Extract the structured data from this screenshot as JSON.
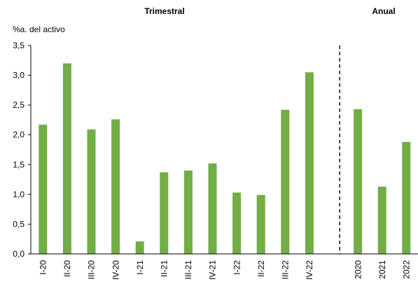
{
  "chart_data": {
    "type": "bar",
    "panels": [
      {
        "title": "Trimestral",
        "categories": [
          "I-20",
          "II-20",
          "III-20",
          "IV-20",
          "I-21",
          "II-21",
          "III-21",
          "IV-21",
          "I-22",
          "II-22",
          "III-22",
          "IV-22"
        ]
      },
      {
        "title": "Anual",
        "categories": [
          "2020",
          "2021",
          "2022"
        ]
      }
    ],
    "categories": [
      "I-20",
      "II-20",
      "III-20",
      "IV-20",
      "I-21",
      "II-21",
      "III-21",
      "IV-21",
      "I-22",
      "II-22",
      "III-22",
      "IV-22",
      "2020",
      "2021",
      "2022"
    ],
    "values": [
      2.17,
      3.2,
      2.09,
      2.26,
      0.21,
      1.37,
      1.4,
      1.52,
      1.03,
      0.99,
      2.42,
      3.05,
      2.43,
      1.13,
      1.88
    ],
    "ylabel": "%a. del activo",
    "ylim": [
      0,
      3.5
    ],
    "yticks": [
      "0,0",
      "0,5",
      "1,0",
      "1,5",
      "2,0",
      "2,5",
      "3,0",
      "3,5"
    ],
    "bar_color": "#72ad45",
    "grid": false,
    "separator": "dashed"
  }
}
